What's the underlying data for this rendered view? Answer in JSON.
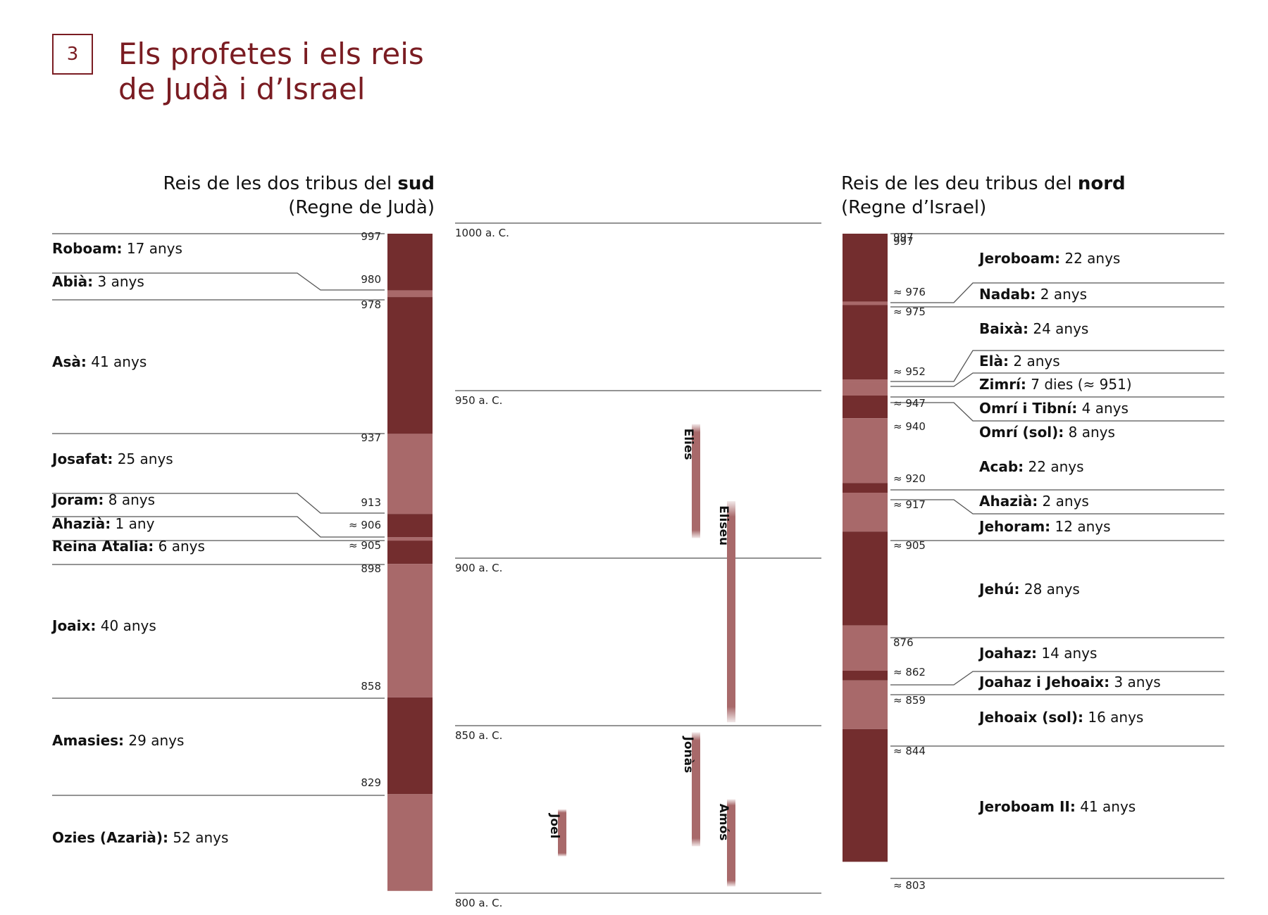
{
  "page": {
    "number": "3",
    "title_lines": [
      "Els profetes i els reis",
      "de Judà i d’Israel"
    ]
  },
  "colors": {
    "dark": "#732d2e",
    "light": "#a8696a",
    "title": "#7a1c22",
    "line": "#555555"
  },
  "south": {
    "heading_pre": "Reis de les dos tribus del ",
    "heading_bold": "sud",
    "subheading": "(Regne de Judà)",
    "kings": [
      {
        "name": "Roboam:",
        "dur": "17 anys",
        "start": "997",
        "from": 997,
        "to": 980,
        "shade": "dark"
      },
      {
        "name": "Abià:",
        "dur": "3 anys",
        "start": "980",
        "from": 980,
        "to": 978,
        "shade": "light"
      },
      {
        "name": "Asà:",
        "dur": "41 anys",
        "start": "978",
        "from": 978,
        "to": 937,
        "shade": "dark"
      },
      {
        "name": "Josafat:",
        "dur": "25 anys",
        "start": "937",
        "from": 937,
        "to": 913,
        "shade": "light"
      },
      {
        "name": "Joram:",
        "dur": "8 anys",
        "start": "913",
        "from": 913,
        "to": 906,
        "shade": "dark"
      },
      {
        "name": "Ahazià:",
        "dur": "1 any",
        "start": "≈ 906",
        "from": 906,
        "to": 905,
        "shade": "light"
      },
      {
        "name": "Reina Atalia:",
        "dur": "6 anys",
        "start": "≈ 905",
        "from": 905,
        "to": 898,
        "shade": "dark"
      },
      {
        "name": "Joaix:",
        "dur": "40 anys",
        "start": "898",
        "from": 898,
        "to": 858,
        "shade": "light"
      },
      {
        "name": "Amasies:",
        "dur": "29 anys",
        "start": "858",
        "from": 858,
        "to": 829,
        "shade": "dark"
      },
      {
        "name": "Ozies (Azarià):",
        "dur": "52 anys",
        "start": "829",
        "from": 829,
        "to": 800,
        "shade": "light"
      }
    ]
  },
  "timeline": {
    "ticks": [
      {
        "year": 1000,
        "label": "1000 a. C."
      },
      {
        "year": 950,
        "label": "950 a. C."
      },
      {
        "year": 900,
        "label": "900 a. C."
      },
      {
        "year": 850,
        "label": "850 a. C."
      },
      {
        "year": 800,
        "label": "800 a. C."
      }
    ],
    "prophets": [
      {
        "name": "Elies",
        "from": 940,
        "to": 906,
        "col": 1
      },
      {
        "name": "Eliseu",
        "from": 917,
        "to": 851,
        "col": 2
      },
      {
        "name": "Jonàs",
        "from": 848,
        "to": 814,
        "col": 1
      },
      {
        "name": "Amós",
        "from": 828,
        "to": 802,
        "col": 2
      },
      {
        "name": "Joel",
        "from": 825,
        "to": 811,
        "col": 0
      }
    ]
  },
  "north": {
    "heading_pre": "Reis de les deu tribus del ",
    "heading_bold": "nord",
    "subheading": "(Regne d’Israel)",
    "kings": [
      {
        "name": "Jeroboam:",
        "dur": "22 anys",
        "start": "997",
        "from": 997,
        "to": 976,
        "shade": "dark"
      },
      {
        "name": "Nadab:",
        "dur": "2 anys",
        "start": "≈ 976",
        "from": 976,
        "to": 975,
        "shade": "light"
      },
      {
        "name": "Baixà:",
        "dur": "24 anys",
        "start": "≈ 975",
        "from": 975,
        "to": 952,
        "shade": "dark"
      },
      {
        "name": "Elà:",
        "dur": "2 anys",
        "start": "≈ 952",
        "from": 952,
        "to": 951,
        "shade": "light"
      },
      {
        "name": "Zimrí:",
        "dur": "7 dies (≈ 951)",
        "start": "",
        "from": 951,
        "to": 951,
        "shade": "light"
      },
      {
        "name": "Omrí i Tibní:",
        "dur": "4 anys",
        "start": "≈ 947",
        "from": 951,
        "to": 947,
        "shade": "light"
      },
      {
        "name": "Omrí (sol):",
        "dur": "8 anys",
        "start": "≈ 940",
        "from": 947,
        "to": 940,
        "shade": "dark"
      },
      {
        "name": "Acab:",
        "dur": "22 anys",
        "start": "≈ 920",
        "from": 940,
        "to": 920,
        "shade": "light"
      },
      {
        "name": "Ahazià:",
        "dur": "2 anys",
        "start": "≈ 917",
        "from": 920,
        "to": 917,
        "shade": "dark"
      },
      {
        "name": "Jehoram:",
        "dur": "12 anys",
        "start": "≈ 905",
        "from": 917,
        "to": 905,
        "shade": "light"
      },
      {
        "name": "Jehú:",
        "dur": "28 anys",
        "start": "876",
        "from": 905,
        "to": 876,
        "shade": "dark"
      },
      {
        "name": "Joahaz:",
        "dur": "14 anys",
        "start": "≈ 862",
        "from": 876,
        "to": 862,
        "shade": "light"
      },
      {
        "name": "Joahaz i Jehoaix:",
        "dur": "3 anys",
        "start": "≈ 859",
        "from": 862,
        "to": 859,
        "shade": "dark"
      },
      {
        "name": "Jehoaix (sol):",
        "dur": "16 anys",
        "start": "≈ 844",
        "from": 859,
        "to": 844,
        "shade": "light"
      },
      {
        "name": "Jeroboam II:",
        "dur": "41 anys",
        "start": "≈ 803",
        "from": 844,
        "to": 803,
        "shade": "dark"
      }
    ]
  }
}
